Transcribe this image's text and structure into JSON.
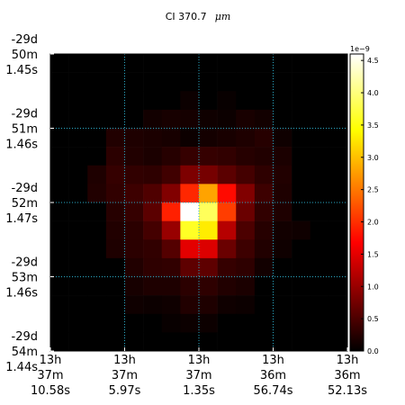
{
  "chart_data": {
    "type": "heatmap",
    "title": "CI 370.7",
    "title_unit": "μm",
    "colormap": "hot",
    "colorbar": {
      "min": 0.0,
      "max": 4.6,
      "exponent_label": "1e−9",
      "ticks": [
        "0.0",
        "0.5",
        "1.0",
        "1.5",
        "2.0",
        "2.5",
        "3.0",
        "3.5",
        "4.0",
        "4.5"
      ]
    },
    "x_ticks": [
      [
        "13h",
        "37m",
        "10.58s"
      ],
      [
        "13h",
        "37m",
        "5.97s"
      ],
      [
        "13h",
        "37m",
        "1.35s"
      ],
      [
        "13h",
        "36m",
        "56.74s"
      ],
      [
        "13h",
        "36m",
        "52.13s"
      ]
    ],
    "y_ticks": [
      [
        "-29d",
        "50m",
        "1.45s"
      ],
      [
        "-29d",
        "51m",
        "1.46s"
      ],
      [
        "-29d",
        "52m",
        "1.47s"
      ],
      [
        "-29d",
        "53m",
        "1.46s"
      ],
      [
        "-29d",
        "54m",
        "1.44s"
      ]
    ],
    "grid": true,
    "grid_color": "#2aa8c4",
    "values": [
      [
        0,
        0,
        0,
        0,
        0,
        0,
        0,
        0,
        0,
        0,
        0,
        0,
        0,
        0,
        0,
        0
      ],
      [
        0,
        0,
        0,
        0,
        0,
        0,
        0,
        0,
        0,
        0,
        0,
        0,
        0,
        0,
        0,
        0
      ],
      [
        0,
        0,
        0,
        0,
        0,
        0,
        0,
        0.08,
        0,
        0.05,
        0,
        0,
        0,
        0,
        0,
        0
      ],
      [
        0,
        0,
        0,
        0,
        0,
        0.12,
        0.15,
        0.14,
        0.1,
        0.08,
        0.16,
        0.12,
        0,
        0,
        0,
        0
      ],
      [
        0,
        0,
        0,
        0.22,
        0.2,
        0.18,
        0.15,
        0.08,
        0.13,
        0.16,
        0.2,
        0.25,
        0.1,
        0,
        0,
        0
      ],
      [
        0,
        0,
        0,
        0.28,
        0.22,
        0.18,
        0.25,
        0.35,
        0.35,
        0.32,
        0.25,
        0.22,
        0.18,
        0,
        0,
        0
      ],
      [
        0,
        0,
        0.2,
        0.35,
        0.32,
        0.3,
        0.42,
        0.82,
        0.78,
        0.6,
        0.45,
        0.3,
        0.22,
        0,
        0,
        0
      ],
      [
        0,
        0,
        0.22,
        0.32,
        0.4,
        0.52,
        0.85,
        1.95,
        2.8,
        1.75,
        0.85,
        0.4,
        0.2,
        0,
        0,
        0
      ],
      [
        0,
        0,
        0,
        0.25,
        0.35,
        0.6,
        1.9,
        4.6,
        3.85,
        2.1,
        0.7,
        0.32,
        0.2,
        0,
        0,
        0
      ],
      [
        0,
        0,
        0,
        0.22,
        0.28,
        0.45,
        1.0,
        3.6,
        3.3,
        1.2,
        0.5,
        0.25,
        0.12,
        0.1,
        0,
        0
      ],
      [
        0,
        0,
        0,
        0.2,
        0.28,
        0.32,
        0.55,
        1.5,
        1.45,
        0.7,
        0.4,
        0.22,
        0.1,
        0,
        0,
        0
      ],
      [
        0,
        0,
        0,
        0,
        0.22,
        0.3,
        0.32,
        0.62,
        0.62,
        0.35,
        0.3,
        0.12,
        0,
        0,
        0,
        0
      ],
      [
        0,
        0,
        0,
        0,
        0.15,
        0.2,
        0.2,
        0.28,
        0.3,
        0.22,
        0.18,
        0,
        0,
        0,
        0,
        0
      ],
      [
        0,
        0,
        0,
        0,
        0.1,
        0.08,
        0.1,
        0.22,
        0.2,
        0.1,
        0.08,
        0,
        0,
        0,
        0,
        0
      ],
      [
        0,
        0,
        0,
        0,
        0,
        0,
        0.05,
        0.08,
        0.08,
        0,
        0,
        0,
        0,
        0,
        0,
        0
      ],
      [
        0,
        0,
        0,
        0,
        0,
        0,
        0,
        0,
        0,
        0,
        0,
        0,
        0,
        0,
        0,
        0
      ]
    ]
  }
}
